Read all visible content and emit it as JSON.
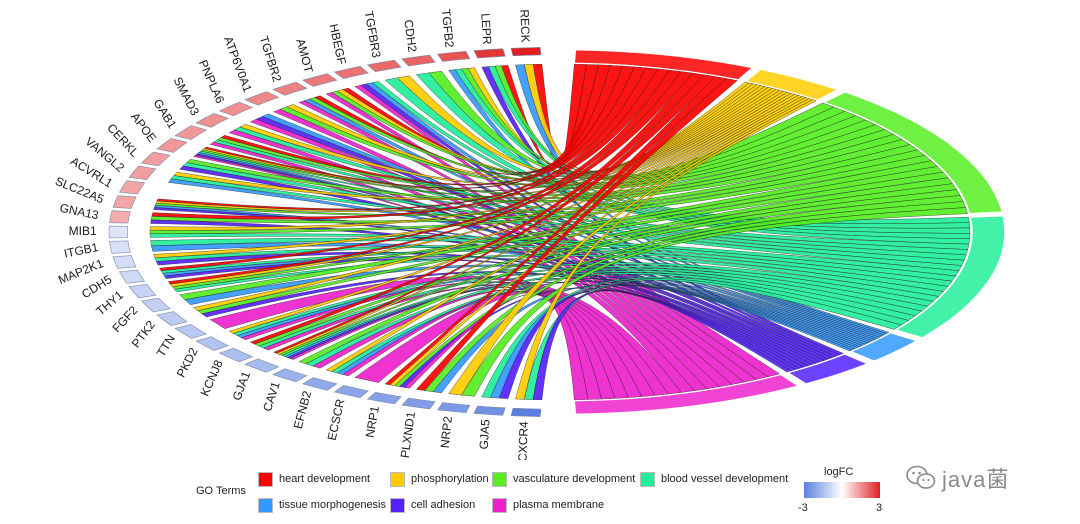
{
  "genes": [
    {
      "name": "RECK",
      "logFC": 3.0
    },
    {
      "name": "LEPR",
      "logFC": 2.7
    },
    {
      "name": "TGFB2",
      "logFC": 2.3
    },
    {
      "name": "CDH2",
      "logFC": 2.1
    },
    {
      "name": "TGFBR3",
      "logFC": 2.0
    },
    {
      "name": "HBEGF",
      "logFC": 1.9
    },
    {
      "name": "AMOT",
      "logFC": 1.8
    },
    {
      "name": "TGFBR2",
      "logFC": 1.7
    },
    {
      "name": "ATP6V0A1",
      "logFC": 1.6
    },
    {
      "name": "PNPLA6",
      "logFC": 1.5
    },
    {
      "name": "SMAD3",
      "logFC": 1.5
    },
    {
      "name": "GAB1",
      "logFC": 1.4
    },
    {
      "name": "APOE",
      "logFC": 1.4
    },
    {
      "name": "CERKL",
      "logFC": 1.3
    },
    {
      "name": "VANGL2",
      "logFC": 1.3
    },
    {
      "name": "ACVRL1",
      "logFC": 1.2
    },
    {
      "name": "SLC22A5",
      "logFC": 1.2
    },
    {
      "name": "GNA13",
      "logFC": 1.1
    },
    {
      "name": "MIB1",
      "logFC": -0.6
    },
    {
      "name": "ITGB1",
      "logFC": -0.7
    },
    {
      "name": "MAP2K1",
      "logFC": -0.8
    },
    {
      "name": "CDH5",
      "logFC": -0.9
    },
    {
      "name": "THY1",
      "logFC": -1.0
    },
    {
      "name": "FGF2",
      "logFC": -1.1
    },
    {
      "name": "PTK2",
      "logFC": -1.2
    },
    {
      "name": "TTN",
      "logFC": -1.3
    },
    {
      "name": "PKD2",
      "logFC": -1.4
    },
    {
      "name": "KCNJ8",
      "logFC": -1.5
    },
    {
      "name": "GJA1",
      "logFC": -1.6
    },
    {
      "name": "CAV1",
      "logFC": -1.8
    },
    {
      "name": "EFNB2",
      "logFC": -2.0
    },
    {
      "name": "ECSCR",
      "logFC": -2.1
    },
    {
      "name": "NRP1",
      "logFC": -2.2
    },
    {
      "name": "PLXND1",
      "logFC": -2.3
    },
    {
      "name": "NRP2",
      "logFC": -2.4
    },
    {
      "name": "GJA5",
      "logFC": -2.6
    },
    {
      "name": "CXCR4",
      "logFC": -3.0
    }
  ],
  "go_terms": [
    {
      "name": "heart development",
      "color": "#ff0000",
      "weight": 14
    },
    {
      "name": "phosphorylation",
      "color": "#ffcc00",
      "weight": 7
    },
    {
      "name": "vasculature development",
      "color": "#55ee22",
      "weight": 26
    },
    {
      "name": "blood vessel development",
      "color": "#22ee99",
      "weight": 24
    },
    {
      "name": "tissue morphogenesis",
      "color": "#3399ff",
      "weight": 5
    },
    {
      "name": "cell adhesion",
      "color": "#5522ff",
      "weight": 6
    },
    {
      "name": "plasma membrane",
      "color": "#ee22cc",
      "weight": 18
    }
  ],
  "legend": {
    "go_title": "GO Terms",
    "fc_title": "logFC",
    "fc_min": "-3",
    "fc_max": "3"
  },
  "colors": {
    "low": "#5a7fe0",
    "mid": "#ffffff",
    "high": "#e02020"
  },
  "watermark": {
    "text": "java菌",
    "icon": "wechat-icon"
  }
}
